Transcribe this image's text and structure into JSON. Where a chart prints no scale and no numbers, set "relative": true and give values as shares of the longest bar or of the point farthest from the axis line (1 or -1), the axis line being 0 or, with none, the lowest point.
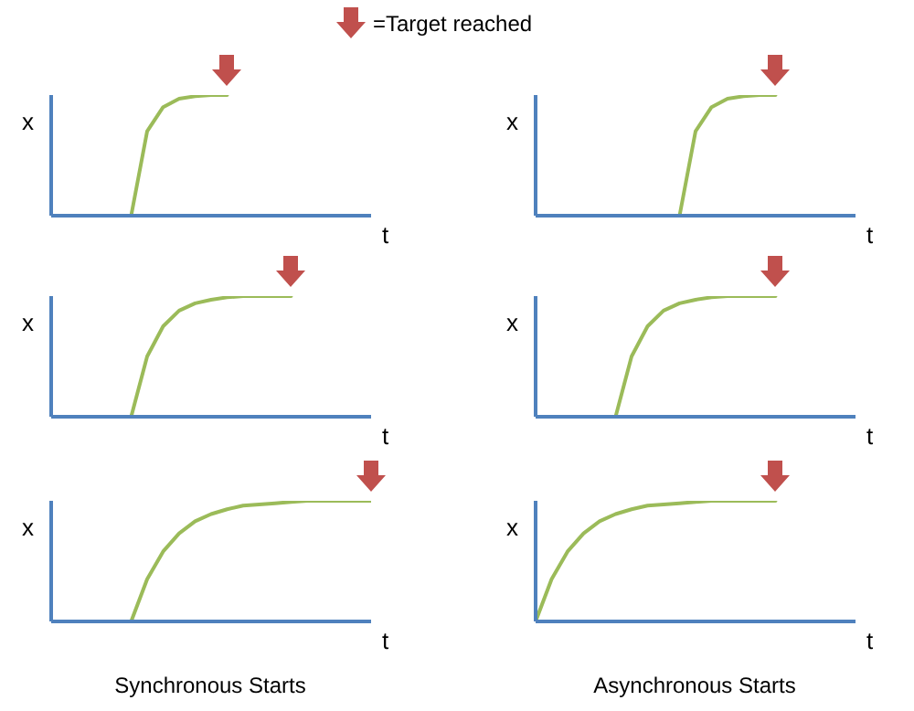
{
  "chart_data": [
    {
      "type": "line",
      "categories": [
        null,
        null,
        null,
        null,
        null,
        null,
        null,
        null,
        null,
        null,
        null,
        null,
        null,
        null,
        null,
        null,
        null,
        null,
        null,
        null,
        null
      ],
      "values": [
        null,
        null,
        null,
        null,
        null,
        0,
        0.7,
        0.9,
        0.97,
        0.99,
        1,
        1,
        null,
        null,
        null,
        null,
        null,
        null,
        null,
        null,
        null
      ],
      "color": "#9bbb59",
      "xlabel": "t",
      "ylabel": "x",
      "relative": true,
      "annotations": [
        "=Target reached"
      ]
    },
    {
      "type": "line",
      "categories": [
        null,
        null,
        null,
        null,
        null,
        null,
        null,
        null,
        null,
        null,
        null,
        null,
        null,
        null,
        null,
        null,
        null,
        null,
        null,
        null,
        null
      ],
      "values": [
        null,
        null,
        null,
        null,
        null,
        null,
        null,
        null,
        null,
        0,
        0.7,
        0.9,
        0.97,
        0.99,
        1,
        1,
        null,
        null,
        null,
        null,
        null
      ],
      "color": "#9bbb59",
      "xlabel": "t",
      "ylabel": "x",
      "relative": true
    },
    {
      "type": "line",
      "categories": [
        null,
        null,
        null,
        null,
        null,
        null,
        null,
        null,
        null,
        null,
        null,
        null,
        null,
        null,
        null,
        null,
        null,
        null,
        null,
        null,
        null
      ],
      "values": [
        null,
        null,
        null,
        null,
        null,
        0,
        0.5,
        0.75,
        0.88,
        0.94,
        0.97,
        0.99,
        1,
        1,
        1,
        1,
        null,
        null,
        null,
        null,
        null
      ],
      "color": "#9bbb59",
      "xlabel": "t",
      "ylabel": "x",
      "relative": true
    },
    {
      "type": "line",
      "categories": [
        null,
        null,
        null,
        null,
        null,
        null,
        null,
        null,
        null,
        null,
        null,
        null,
        null,
        null,
        null,
        null,
        null,
        null,
        null,
        null,
        null
      ],
      "values": [
        null,
        null,
        null,
        null,
        null,
        0,
        0.5,
        0.75,
        0.88,
        0.94,
        0.97,
        0.99,
        1,
        1,
        1,
        1,
        null,
        null,
        null,
        null,
        null
      ],
      "color": "#9bbb59",
      "xlabel": "t",
      "ylabel": "x",
      "relative": true
    },
    {
      "type": "line",
      "categories": [
        null,
        null,
        null,
        null,
        null,
        null,
        null,
        null,
        null,
        null,
        null,
        null,
        null,
        null,
        null,
        null,
        null,
        null,
        null,
        null,
        null
      ],
      "values": [
        null,
        null,
        null,
        null,
        null,
        0,
        0.35,
        0.58,
        0.73,
        0.83,
        0.89,
        0.93,
        0.96,
        0.97,
        0.98,
        0.99,
        1,
        1,
        1,
        1,
        1
      ],
      "color": "#9bbb59",
      "xlabel": "t",
      "ylabel": "x",
      "relative": true,
      "annotations": [
        "Synchronous Starts"
      ]
    },
    {
      "type": "line",
      "categories": [
        null,
        null,
        null,
        null,
        null,
        null,
        null,
        null,
        null,
        null,
        null,
        null,
        null,
        null,
        null,
        null,
        null,
        null,
        null,
        null,
        null
      ],
      "values": [
        0,
        0.35,
        0.58,
        0.73,
        0.83,
        0.89,
        0.93,
        0.96,
        0.97,
        0.98,
        0.99,
        1,
        1,
        1,
        1,
        1,
        null,
        null,
        null,
        null,
        null
      ],
      "color": "#9bbb59",
      "xlabel": "t",
      "ylabel": "x",
      "relative": true,
      "annotations": [
        "Asynchronous Starts"
      ]
    }
  ]
}
